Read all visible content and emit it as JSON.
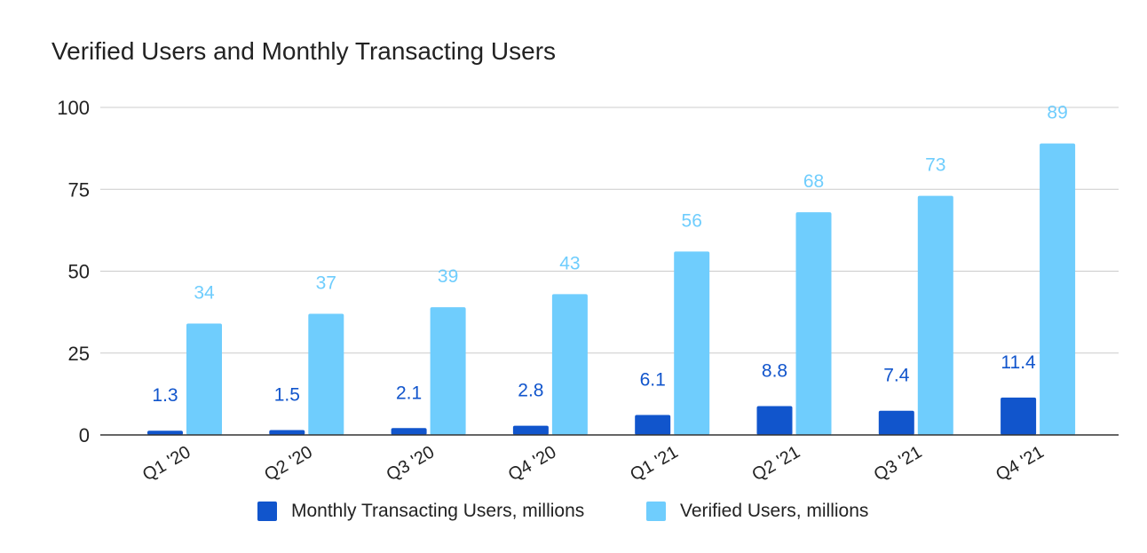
{
  "chart_data": {
    "type": "bar",
    "title": "Verified Users and Monthly Transacting Users",
    "categories": [
      "Q1 '20",
      "Q2 '20",
      "Q3 '20",
      "Q4 '20",
      "Q1 '21",
      "Q2 '21",
      "Q3 '21",
      "Q4 '21"
    ],
    "series": [
      {
        "name": "Monthly Transacting Users, millions",
        "color": "#1155cc",
        "values": [
          1.3,
          1.5,
          2.1,
          2.8,
          6.1,
          8.8,
          7.4,
          11.4
        ],
        "labels": [
          "1.3",
          "1.5",
          "2.1",
          "2.8",
          "6.1",
          "8.8",
          "7.4",
          "11.4"
        ]
      },
      {
        "name": "Verified Users, millions",
        "color": "#6fcdfd",
        "values": [
          34,
          37,
          39,
          43,
          56,
          68,
          73,
          89
        ],
        "labels": [
          "34",
          "37",
          "39",
          "43",
          "56",
          "68",
          "73",
          "89"
        ]
      }
    ],
    "yticks": [
      0,
      25,
      50,
      75,
      100
    ],
    "ylim": [
      0,
      100
    ],
    "xlabel": "",
    "ylabel": "",
    "grid": true,
    "legend_position": "bottom"
  }
}
